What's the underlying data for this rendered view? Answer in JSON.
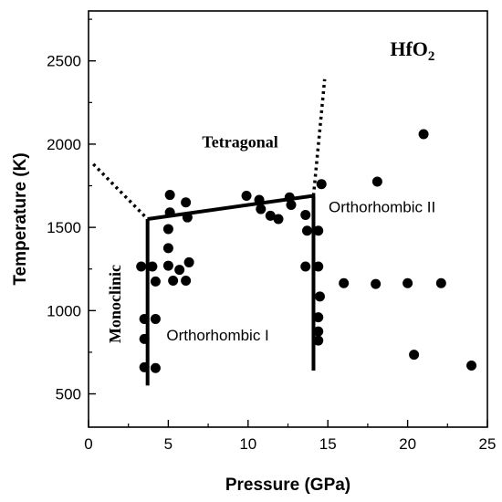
{
  "chart_data": {
    "type": "scatter",
    "title": "",
    "material": {
      "base": "HfO",
      "subscript": "2"
    },
    "xlabel": "Pressure (GPa)",
    "ylabel": "Temperature (K)",
    "xlim": [
      0,
      25
    ],
    "ylim": [
      300,
      2800
    ],
    "xticks": [
      0,
      5,
      10,
      15,
      20,
      25
    ],
    "yticks": [
      500,
      1000,
      1500,
      2000,
      2500
    ],
    "grid": false,
    "points": [
      {
        "x": 3.3,
        "y": 1265
      },
      {
        "x": 3.5,
        "y": 950
      },
      {
        "x": 3.5,
        "y": 830
      },
      {
        "x": 3.5,
        "y": 660
      },
      {
        "x": 4.0,
        "y": 1265
      },
      {
        "x": 4.2,
        "y": 1175
      },
      {
        "x": 4.2,
        "y": 950
      },
      {
        "x": 4.2,
        "y": 655
      },
      {
        "x": 5.1,
        "y": 1695
      },
      {
        "x": 5.1,
        "y": 1590
      },
      {
        "x": 5.0,
        "y": 1490
      },
      {
        "x": 5.0,
        "y": 1375
      },
      {
        "x": 5.0,
        "y": 1270
      },
      {
        "x": 5.3,
        "y": 1180
      },
      {
        "x": 5.7,
        "y": 1245
      },
      {
        "x": 6.1,
        "y": 1650
      },
      {
        "x": 6.2,
        "y": 1560
      },
      {
        "x": 6.1,
        "y": 1180
      },
      {
        "x": 6.3,
        "y": 1290
      },
      {
        "x": 9.9,
        "y": 1690
      },
      {
        "x": 10.7,
        "y": 1665
      },
      {
        "x": 10.8,
        "y": 1610
      },
      {
        "x": 11.4,
        "y": 1570
      },
      {
        "x": 11.9,
        "y": 1550
      },
      {
        "x": 12.6,
        "y": 1680
      },
      {
        "x": 12.7,
        "y": 1635
      },
      {
        "x": 13.6,
        "y": 1575
      },
      {
        "x": 13.7,
        "y": 1480
      },
      {
        "x": 13.6,
        "y": 1265
      },
      {
        "x": 14.4,
        "y": 1480
      },
      {
        "x": 14.4,
        "y": 1265
      },
      {
        "x": 14.5,
        "y": 1085
      },
      {
        "x": 14.4,
        "y": 960
      },
      {
        "x": 14.4,
        "y": 875
      },
      {
        "x": 14.4,
        "y": 820
      },
      {
        "x": 14.6,
        "y": 1760
      },
      {
        "x": 16.0,
        "y": 1165
      },
      {
        "x": 18.0,
        "y": 1160
      },
      {
        "x": 18.1,
        "y": 1775
      },
      {
        "x": 20.0,
        "y": 1165
      },
      {
        "x": 20.4,
        "y": 735
      },
      {
        "x": 21.0,
        "y": 2060
      },
      {
        "x": 22.1,
        "y": 1165
      },
      {
        "x": 24.0,
        "y": 670
      }
    ],
    "solid_lines": [
      [
        [
          3.7,
          550
        ],
        [
          3.7,
          1550
        ]
      ],
      [
        [
          3.7,
          1550
        ],
        [
          14.1,
          1690
        ]
      ],
      [
        [
          14.1,
          1690
        ],
        [
          14.1,
          640
        ]
      ]
    ],
    "dotted_lines": [
      [
        [
          0.3,
          1880
        ],
        [
          3.7,
          1550
        ]
      ],
      [
        [
          14.1,
          1690
        ],
        [
          14.8,
          2390
        ]
      ]
    ],
    "region_labels": [
      {
        "text": "Tetragonal",
        "x": 9.5,
        "y": 1980,
        "style": "bold",
        "rotate": false
      },
      {
        "text": "Orthorhombic II",
        "x": 18.4,
        "y": 1590,
        "style": "normal",
        "rotate": false
      },
      {
        "text": "Orthorhombic I",
        "x": 8.1,
        "y": 820,
        "style": "normal",
        "rotate": false
      },
      {
        "text": "Monoclinic",
        "x": 2.0,
        "y": 1040,
        "style": "bold",
        "rotate": true
      }
    ]
  }
}
